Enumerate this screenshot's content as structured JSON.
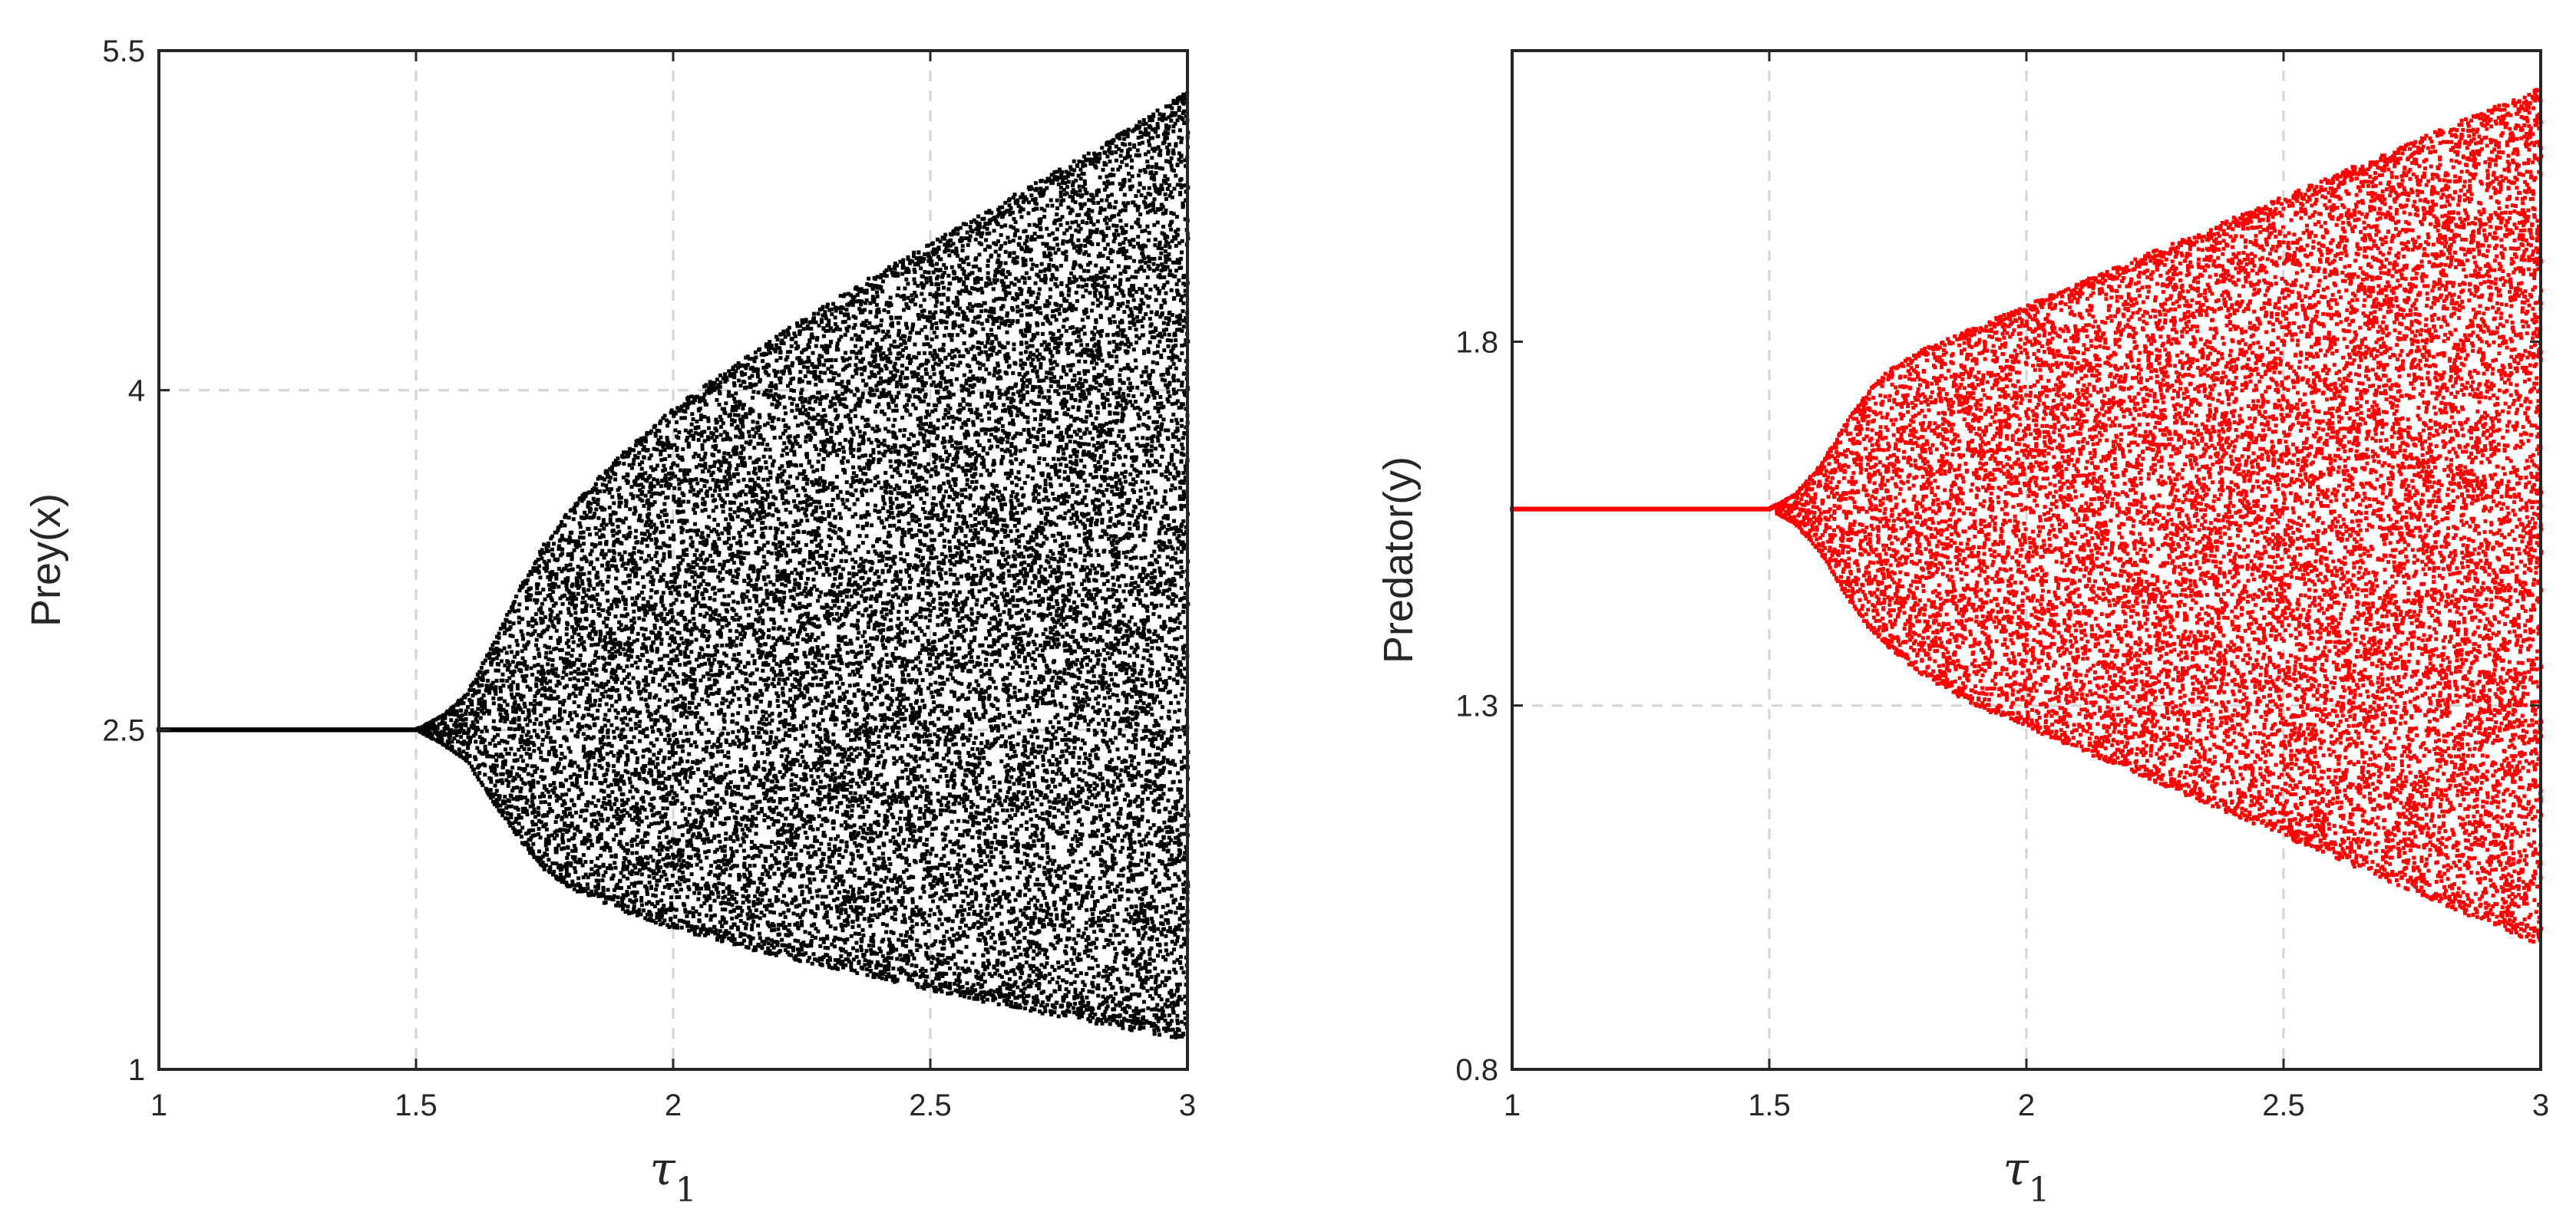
{
  "chart_data": [
    {
      "type": "scatter",
      "title": "",
      "xlabel_symbol": "τ",
      "xlabel_subscript": "1",
      "ylabel": "Prey(x)",
      "xlim": [
        1,
        3
      ],
      "ylim": [
        1,
        5.5
      ],
      "xticks": [
        1,
        1.5,
        2,
        2.5,
        3
      ],
      "xtick_labels": [
        "1",
        "1.5",
        "2",
        "2.5",
        "3"
      ],
      "yticks": [
        1,
        2.5,
        4,
        5.5
      ],
      "ytick_labels": [
        "1",
        "2.5",
        "4",
        "5.5"
      ],
      "grid": true,
      "color": "#000000",
      "series": [
        {
          "bifurcation_envelope": {
            "x": [
              1.0,
              1.5,
              1.55,
              1.6,
              1.65,
              1.7,
              1.75,
              1.8,
              1.9,
              2.0,
              2.2,
              2.4,
              2.6,
              2.8,
              3.0
            ],
            "upper": [
              2.5,
              2.5,
              2.56,
              2.66,
              2.88,
              3.12,
              3.32,
              3.48,
              3.72,
              3.92,
              4.24,
              4.52,
              4.78,
              5.04,
              5.32
            ],
            "lower": [
              2.5,
              2.5,
              2.44,
              2.36,
              2.18,
              2.02,
              1.88,
              1.8,
              1.7,
              1.62,
              1.5,
              1.4,
              1.3,
              1.21,
              1.13
            ]
          }
        }
      ]
    },
    {
      "type": "scatter",
      "title": "",
      "xlabel_symbol": "τ",
      "xlabel_subscript": "1",
      "ylabel": "Predator(y)",
      "xlim": [
        1,
        3
      ],
      "ylim": [
        0.8,
        2.2
      ],
      "xticks": [
        1,
        1.5,
        2,
        2.5,
        3
      ],
      "xtick_labels": [
        "1",
        "1.5",
        "2",
        "2.5",
        "3"
      ],
      "yticks": [
        0.8,
        1.3,
        1.8
      ],
      "ytick_labels": [
        "0.8",
        "1.3",
        "1.8"
      ],
      "grid": true,
      "color": "#ff0000",
      "series": [
        {
          "bifurcation_envelope": {
            "x": [
              1.0,
              1.5,
              1.55,
              1.6,
              1.65,
              1.7,
              1.75,
              1.8,
              1.9,
              2.0,
              2.2,
              2.4,
              2.6,
              2.8,
              3.0
            ],
            "upper": [
              1.57,
              1.57,
              1.59,
              1.63,
              1.69,
              1.74,
              1.77,
              1.79,
              1.82,
              1.85,
              1.91,
              1.97,
              2.03,
              2.09,
              2.15
            ],
            "lower": [
              1.57,
              1.57,
              1.55,
              1.51,
              1.45,
              1.4,
              1.37,
              1.34,
              1.3,
              1.27,
              1.21,
              1.15,
              1.09,
              1.03,
              0.97
            ]
          }
        }
      ]
    }
  ]
}
